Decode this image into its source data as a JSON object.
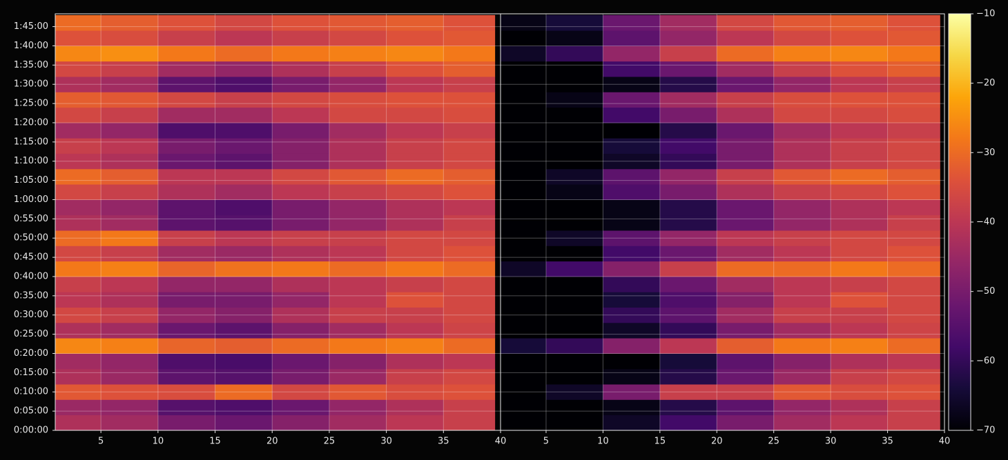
{
  "chart_data": {
    "type": "heatmap",
    "ylim": [
      0,
      6500
    ],
    "yticks": [
      {
        "value": 0,
        "label": "0:00:00"
      },
      {
        "value": 300,
        "label": "0:05:00"
      },
      {
        "value": 600,
        "label": "0:10:00"
      },
      {
        "value": 900,
        "label": "0:15:00"
      },
      {
        "value": 1200,
        "label": "0:20:00"
      },
      {
        "value": 1500,
        "label": "0:25:00"
      },
      {
        "value": 1800,
        "label": "0:30:00"
      },
      {
        "value": 2100,
        "label": "0:35:00"
      },
      {
        "value": 2400,
        "label": "0:40:00"
      },
      {
        "value": 2700,
        "label": "0:45:00"
      },
      {
        "value": 3000,
        "label": "0:50:00"
      },
      {
        "value": 3300,
        "label": "0:55:00"
      },
      {
        "value": 3600,
        "label": "1:00:00"
      },
      {
        "value": 3900,
        "label": "1:05:00"
      },
      {
        "value": 4200,
        "label": "1:10:00"
      },
      {
        "value": 4500,
        "label": "1:15:00"
      },
      {
        "value": 4800,
        "label": "1:20:00"
      },
      {
        "value": 5100,
        "label": "1:25:00"
      },
      {
        "value": 5400,
        "label": "1:30:00"
      },
      {
        "value": 5700,
        "label": "1:35:00"
      },
      {
        "value": 6000,
        "label": "1:40:00"
      },
      {
        "value": 6300,
        "label": "1:45:00"
      }
    ],
    "y_edges": [
      0,
      240,
      480,
      720,
      960,
      1200,
      1440,
      1680,
      1920,
      2160,
      2400,
      2640,
      2880,
      3120,
      3360,
      3600,
      3840,
      4080,
      4320,
      4560,
      4800,
      5040,
      5280,
      5520,
      5760,
      6000,
      6240,
      6480
    ],
    "grid": true,
    "colormap": "inferno",
    "clim": [
      -70,
      -10
    ],
    "cticks": [
      {
        "value": -70,
        "label": "−70"
      },
      {
        "value": -60,
        "label": "−60"
      },
      {
        "value": -50,
        "label": "−50"
      },
      {
        "value": -40,
        "label": "−40"
      },
      {
        "value": -30,
        "label": "−30"
      },
      {
        "value": -20,
        "label": "−20"
      },
      {
        "value": -10,
        "label": "−10"
      }
    ],
    "panels": [
      {
        "xlim": [
          1,
          40
        ],
        "xticks": [
          5,
          10,
          15,
          20,
          25,
          30,
          35,
          40
        ],
        "x_edges": [
          1,
          5,
          10,
          15,
          20,
          25,
          30,
          35,
          39.5
        ],
        "values": [
          [
            -42,
            -44,
            -50,
            -52,
            -48,
            -44,
            -40,
            -38
          ],
          [
            -45,
            -46,
            -55,
            -56,
            -52,
            -46,
            -42,
            -38
          ],
          [
            -33,
            -34,
            -35,
            -30,
            -36,
            -33,
            -35,
            -34
          ],
          [
            -42,
            -45,
            -54,
            -55,
            -50,
            -45,
            -38,
            -36
          ],
          [
            -44,
            -46,
            -56,
            -57,
            -52,
            -48,
            -42,
            -40
          ],
          [
            -26,
            -27,
            -31,
            -32,
            -30,
            -28,
            -27,
            -30
          ],
          [
            -42,
            -44,
            -52,
            -54,
            -48,
            -44,
            -40,
            -37
          ],
          [
            -36,
            -38,
            -46,
            -48,
            -42,
            -38,
            -38,
            -36
          ],
          [
            -40,
            -42,
            -50,
            -50,
            -46,
            -40,
            -34,
            -36
          ],
          [
            -38,
            -40,
            -46,
            -46,
            -42,
            -40,
            -38,
            -36
          ],
          [
            -28,
            -27,
            -31,
            -29,
            -28,
            -30,
            -28,
            -30
          ],
          [
            -36,
            -38,
            -44,
            -45,
            -42,
            -40,
            -36,
            -34
          ],
          [
            -30,
            -28,
            -38,
            -40,
            -38,
            -38,
            -36,
            -36
          ],
          [
            -42,
            -44,
            -54,
            -55,
            -50,
            -46,
            -42,
            -38
          ],
          [
            -44,
            -46,
            -54,
            -56,
            -50,
            -46,
            -42,
            -40
          ],
          [
            -36,
            -38,
            -42,
            -44,
            -40,
            -38,
            -36,
            -34
          ],
          [
            -30,
            -32,
            -40,
            -40,
            -36,
            -33,
            -30,
            -32
          ],
          [
            -40,
            -42,
            -52,
            -54,
            -48,
            -42,
            -38,
            -36
          ],
          [
            -38,
            -40,
            -50,
            -52,
            -48,
            -42,
            -38,
            -36
          ],
          [
            -44,
            -46,
            -56,
            -56,
            -50,
            -44,
            -40,
            -38
          ],
          [
            -36,
            -38,
            -44,
            -44,
            -40,
            -36,
            -36,
            -35
          ],
          [
            -32,
            -33,
            -36,
            -38,
            -36,
            -35,
            -34,
            -34
          ],
          [
            -42,
            -44,
            -54,
            -56,
            -50,
            -46,
            -40,
            -38
          ],
          [
            -36,
            -38,
            -44,
            -46,
            -42,
            -38,
            -34,
            -32
          ],
          [
            -26,
            -25,
            -28,
            -30,
            -28,
            -27,
            -26,
            -28
          ],
          [
            -34,
            -35,
            -38,
            -40,
            -38,
            -36,
            -34,
            -33
          ],
          [
            -30,
            -32,
            -34,
            -36,
            -34,
            -33,
            -32,
            -34
          ]
        ]
      },
      {
        "xlim": [
          1,
          40
        ],
        "xticks": [
          5,
          10,
          15,
          20,
          25,
          30,
          35,
          40
        ],
        "x_edges": [
          1,
          5,
          10,
          15,
          20,
          25,
          30,
          35,
          39.6
        ],
        "values": [
          [
            -70,
            -70,
            -66,
            -58,
            -50,
            -44,
            -40,
            -38
          ],
          [
            -70,
            -70,
            -68,
            -62,
            -54,
            -46,
            -42,
            -38
          ],
          [
            -70,
            -66,
            -50,
            -38,
            -38,
            -33,
            -35,
            -34
          ],
          [
            -70,
            -70,
            -68,
            -62,
            -52,
            -45,
            -38,
            -36
          ],
          [
            -70,
            -70,
            -70,
            -64,
            -54,
            -48,
            -42,
            -40
          ],
          [
            -64,
            -60,
            -48,
            -40,
            -32,
            -28,
            -27,
            -30
          ],
          [
            -70,
            -70,
            -66,
            -60,
            -50,
            -44,
            -40,
            -37
          ],
          [
            -70,
            -70,
            -60,
            -54,
            -44,
            -38,
            -38,
            -36
          ],
          [
            -70,
            -70,
            -64,
            -56,
            -48,
            -40,
            -34,
            -36
          ],
          [
            -70,
            -70,
            -60,
            -52,
            -44,
            -40,
            -38,
            -36
          ],
          [
            -66,
            -58,
            -48,
            -38,
            -30,
            -30,
            -28,
            -30
          ],
          [
            -70,
            -70,
            -58,
            -52,
            -44,
            -40,
            -36,
            -34
          ],
          [
            -70,
            -66,
            -54,
            -46,
            -40,
            -38,
            -36,
            -36
          ],
          [
            -70,
            -70,
            -68,
            -62,
            -52,
            -46,
            -42,
            -38
          ],
          [
            -70,
            -70,
            -68,
            -62,
            -52,
            -46,
            -42,
            -40
          ],
          [
            -70,
            -68,
            -56,
            -50,
            -42,
            -38,
            -36,
            -34
          ],
          [
            -70,
            -66,
            -54,
            -46,
            -38,
            -33,
            -30,
            -32
          ],
          [
            -70,
            -70,
            -66,
            -60,
            -50,
            -42,
            -38,
            -36
          ],
          [
            -70,
            -70,
            -64,
            -58,
            -50,
            -42,
            -38,
            -36
          ],
          [
            -70,
            -70,
            -70,
            -62,
            -52,
            -44,
            -40,
            -38
          ],
          [
            -70,
            -70,
            -58,
            -50,
            -42,
            -36,
            -36,
            -35
          ],
          [
            -70,
            -68,
            -52,
            -44,
            -38,
            -35,
            -34,
            -34
          ],
          [
            -70,
            -70,
            -68,
            -62,
            -52,
            -46,
            -40,
            -38
          ],
          [
            -70,
            -70,
            -58,
            -52,
            -44,
            -38,
            -34,
            -32
          ],
          [
            -66,
            -60,
            -46,
            -38,
            -30,
            -27,
            -26,
            -28
          ],
          [
            -70,
            -68,
            -54,
            -46,
            -40,
            -36,
            -34,
            -33
          ],
          [
            -68,
            -64,
            -52,
            -44,
            -36,
            -33,
            -32,
            -34
          ]
        ]
      }
    ]
  }
}
